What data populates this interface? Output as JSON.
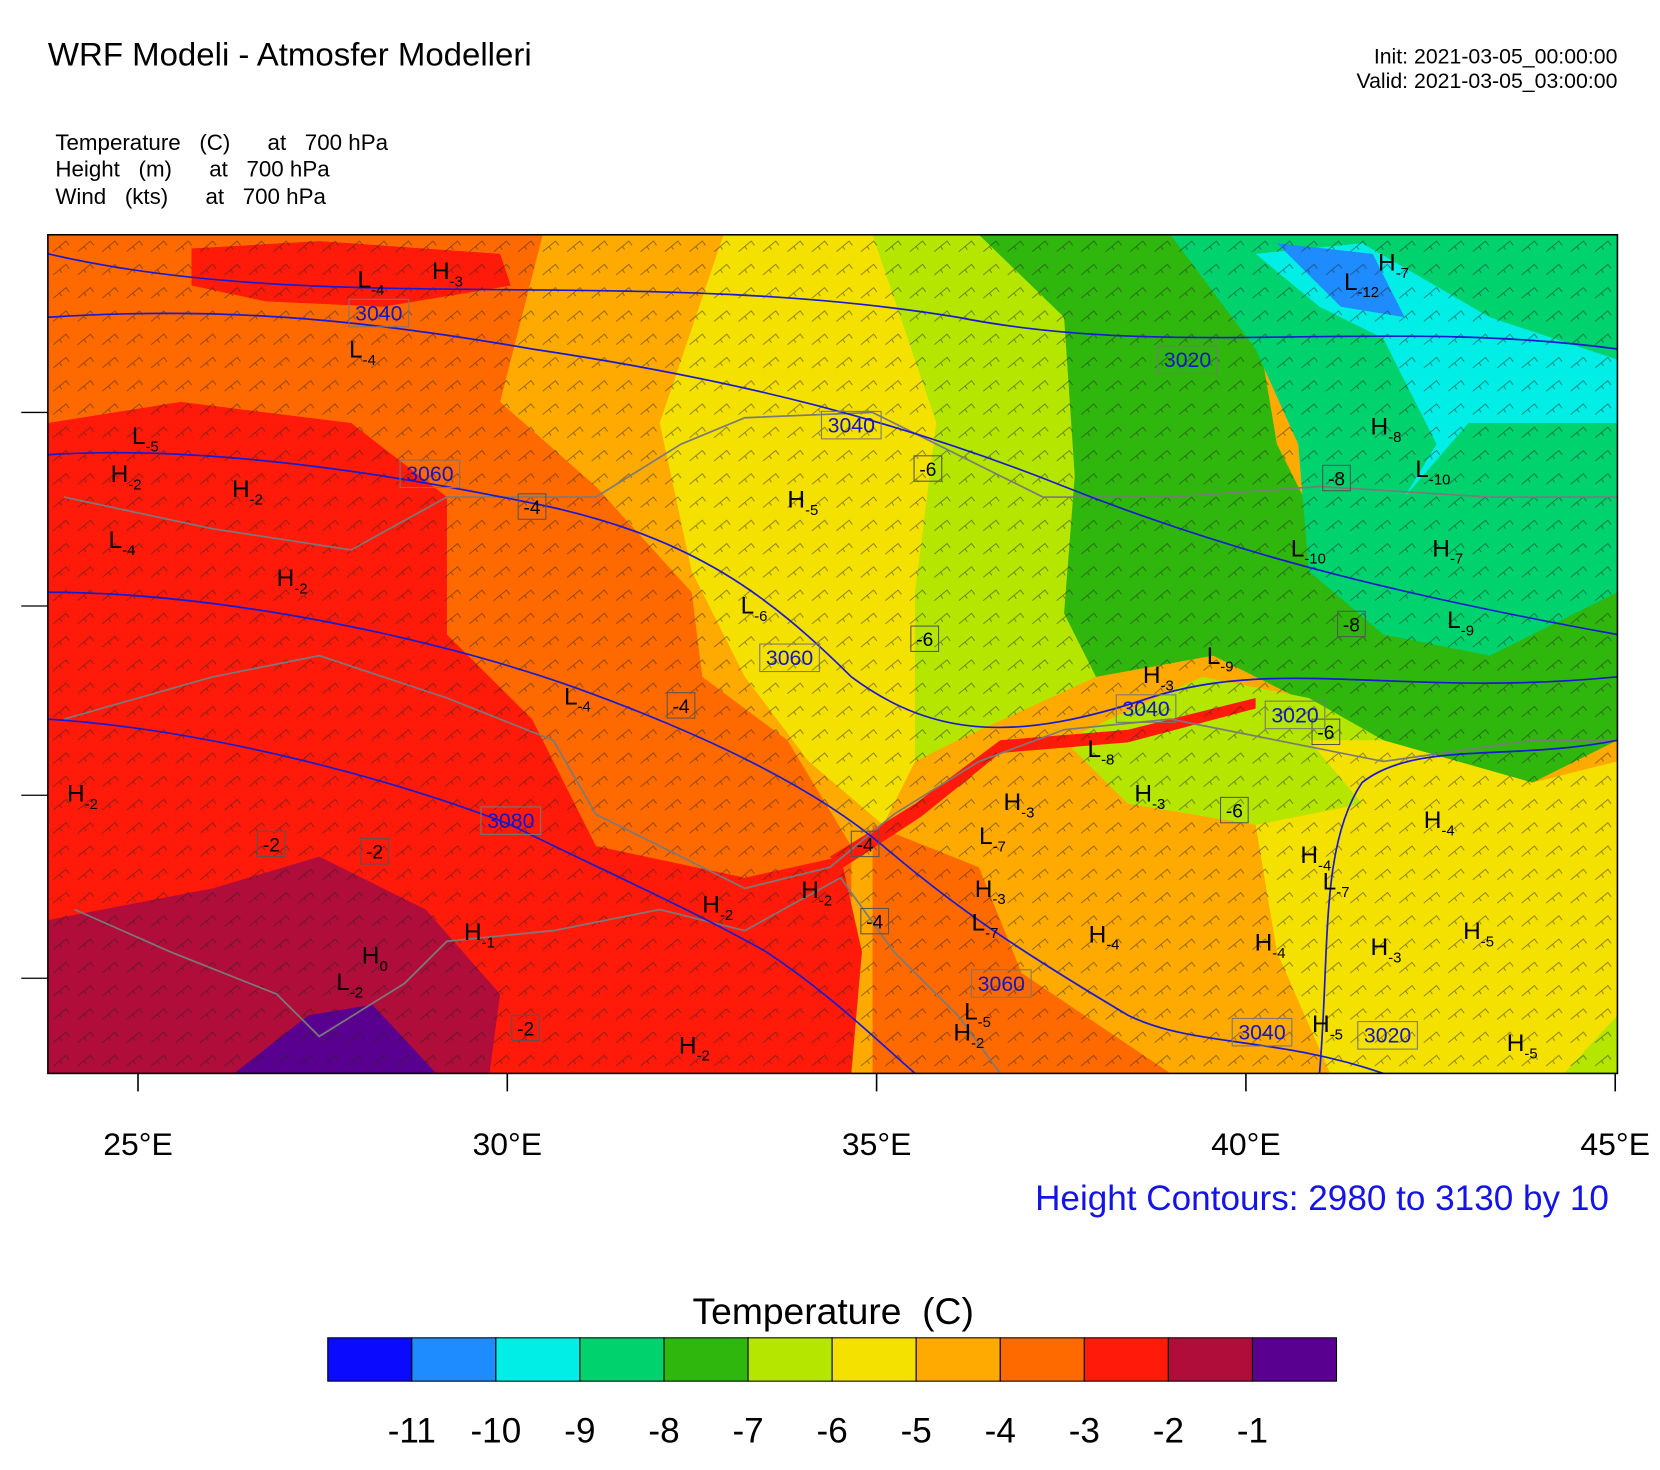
{
  "header": {
    "title": "WRF Modeli - Atmosfer Modelleri",
    "init": "Init: 2021-03-05_00:00:00",
    "valid": "Valid: 2021-03-05_03:00:00"
  },
  "fields": [
    "Temperature   (C)      at   700 hPa",
    "Height   (m)      at   700 hPa",
    "Wind   (kts)      at   700 hPa"
  ],
  "map": {
    "xlim": [
      23.78,
      45.03
    ],
    "xticks": [
      {
        "value": 25,
        "label": "25°E"
      },
      {
        "value": 30,
        "label": "30°E"
      },
      {
        "value": 35,
        "label": "35°E"
      },
      {
        "value": 40,
        "label": "40°E"
      },
      {
        "value": 45,
        "label": "45°E"
      }
    ],
    "contour_note": "Height Contours: 2980 to 3130 by 10",
    "pressure_centers": [
      {
        "letter": "L",
        "value": -4
      },
      {
        "letter": "H",
        "value": -3
      },
      {
        "letter": "L",
        "value": -4
      },
      {
        "letter": "L",
        "value": -5
      },
      {
        "letter": "H",
        "value": -2
      },
      {
        "letter": "H",
        "value": -2
      },
      {
        "letter": "L",
        "value": -4
      },
      {
        "letter": "H",
        "value": -2
      },
      {
        "letter": "H",
        "value": -5
      },
      {
        "letter": "L",
        "value": -6
      },
      {
        "letter": "L",
        "value": -4
      },
      {
        "letter": "H",
        "value": -3
      },
      {
        "letter": "L",
        "value": -9
      },
      {
        "letter": "L",
        "value": -8
      },
      {
        "letter": "H",
        "value": -3
      },
      {
        "letter": "H",
        "value": -3
      },
      {
        "letter": "L",
        "value": -7
      },
      {
        "letter": "H",
        "value": -3
      },
      {
        "letter": "L",
        "value": -7
      },
      {
        "letter": "H",
        "value": -2
      },
      {
        "letter": "H",
        "value": -2
      },
      {
        "letter": "H",
        "value": -1
      },
      {
        "letter": "H",
        "value": 0
      },
      {
        "letter": "L",
        "value": -2
      },
      {
        "letter": "H",
        "value": -2
      },
      {
        "letter": "L",
        "value": -5
      },
      {
        "letter": "H",
        "value": -2
      },
      {
        "letter": "H",
        "value": -4
      },
      {
        "letter": "H",
        "value": -4
      },
      {
        "letter": "H",
        "value": -5
      },
      {
        "letter": "H",
        "value": -3
      },
      {
        "letter": "H",
        "value": -5
      },
      {
        "letter": "H",
        "value": -4
      },
      {
        "letter": "H",
        "value": -4
      },
      {
        "letter": "L",
        "value": -7
      },
      {
        "letter": "H",
        "value": -5
      },
      {
        "letter": "H",
        "value": -8
      },
      {
        "letter": "L",
        "value": -10
      },
      {
        "letter": "L",
        "value": -10
      },
      {
        "letter": "H",
        "value": -7
      },
      {
        "letter": "L",
        "value": -9
      },
      {
        "letter": "H",
        "value": -7
      },
      {
        "letter": "L",
        "value": -12
      },
      {
        "letter": "H",
        "value": -2
      }
    ],
    "temperature_labels": [
      -4,
      -6,
      -6,
      -4,
      -2,
      -2,
      -4,
      -4,
      -2,
      -6,
      -6,
      -8,
      -8
    ],
    "height_labels": [
      3040,
      3020,
      3040,
      3060,
      3060,
      3040,
      3020,
      3080,
      3060,
      3040,
      3020
    ]
  },
  "colorbar": {
    "title": "Temperature  (C)",
    "colors": [
      "#0a0aff",
      "#1e8cff",
      "#00eee6",
      "#00d26e",
      "#2fb70d",
      "#b4e600",
      "#f5e100",
      "#ffaa00",
      "#ff6a00",
      "#ff1a0a",
      "#b00d3a",
      "#5a0090"
    ],
    "labels": [
      -11,
      -10,
      -9,
      -8,
      -7,
      -6,
      -5,
      -4,
      -3,
      -2,
      -1
    ]
  }
}
